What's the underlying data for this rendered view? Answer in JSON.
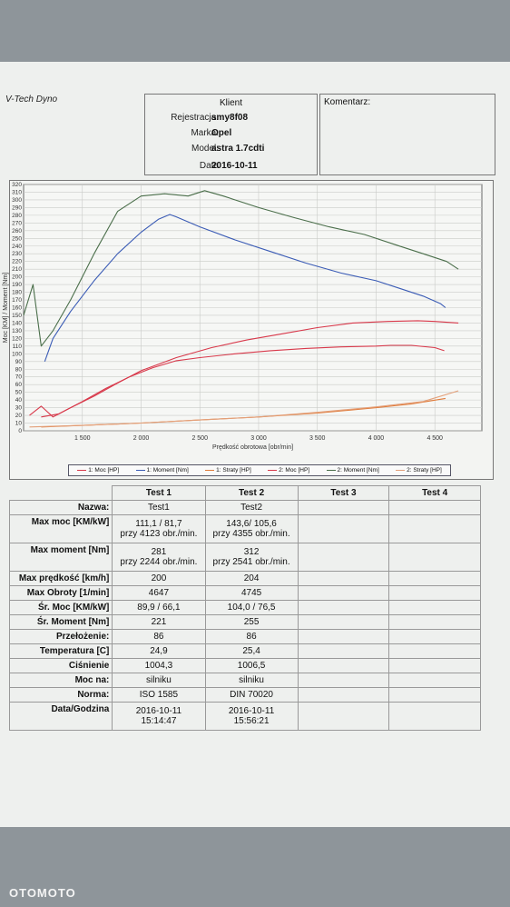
{
  "header": {
    "brand": "V-Tech Dyno",
    "client_title": "Klient",
    "fields": [
      {
        "label": "Rejestracja:",
        "value": "smy8f08"
      },
      {
        "label": "Marka:",
        "value": "Opel"
      },
      {
        "label": "Model:",
        "value": "astra 1.7cdti"
      },
      {
        "label": "Data",
        "value": "2016-10-11"
      }
    ],
    "comment_label": "Komentarz:"
  },
  "chart_data": {
    "type": "line",
    "title": "",
    "xlabel": "Prędkość obrotowa [obr/min]",
    "ylabel": "Moc [KM] / Moment [Nm]",
    "xlim": [
      1000,
      4900
    ],
    "ylim": [
      0,
      320
    ],
    "x_ticks": [
      1500,
      2000,
      2500,
      3000,
      3500,
      4000,
      4500
    ],
    "x_tick_labels": [
      "1 500",
      "2 000",
      "2 500",
      "3 000",
      "3 500",
      "4 000",
      "4 500"
    ],
    "y_ticks": [
      0,
      10,
      20,
      30,
      40,
      50,
      60,
      70,
      80,
      90,
      100,
      110,
      120,
      130,
      140,
      150,
      160,
      170,
      180,
      190,
      200,
      210,
      220,
      230,
      240,
      250,
      260,
      270,
      280,
      290,
      300,
      310,
      320
    ],
    "grid": true,
    "legend_position": "bottom",
    "series": [
      {
        "name": "1: Moc [HP]",
        "color": "#d8384a",
        "x": [
          1150,
          1300,
          1500,
          1700,
          1900,
          2100,
          2300,
          2500,
          2800,
          3100,
          3400,
          3700,
          4000,
          4123,
          4300,
          4500,
          4580
        ],
        "y": [
          18,
          22,
          38,
          55,
          70,
          82,
          91,
          95,
          100,
          104,
          107,
          109,
          110,
          111,
          111,
          108,
          104
        ]
      },
      {
        "name": "1: Moment [Nm]",
        "color": "#3a5bb5",
        "x": [
          1180,
          1250,
          1400,
          1600,
          1800,
          2000,
          2150,
          2244,
          2300,
          2500,
          2800,
          3100,
          3400,
          3700,
          4000,
          4200,
          4400,
          4550,
          4590
        ],
        "y": [
          90,
          120,
          155,
          195,
          230,
          258,
          275,
          281,
          278,
          265,
          248,
          233,
          218,
          205,
          195,
          185,
          175,
          165,
          160
        ]
      },
      {
        "name": "1: Straty [HP]",
        "color": "#e07b3a",
        "x": [
          1150,
          1500,
          2000,
          2500,
          3000,
          3500,
          4000,
          4300,
          4590
        ],
        "y": [
          5,
          7,
          10,
          14,
          18,
          23,
          30,
          35,
          42
        ]
      },
      {
        "name": "2: Moc [HP]",
        "color": "#d8384a",
        "x": [
          1050,
          1150,
          1250,
          1400,
          1600,
          1800,
          2000,
          2300,
          2600,
          2900,
          3200,
          3500,
          3800,
          4100,
          4355,
          4500,
          4700
        ],
        "y": [
          20,
          32,
          18,
          30,
          45,
          62,
          78,
          95,
          108,
          118,
          126,
          134,
          140,
          142,
          143,
          142,
          140
        ]
      },
      {
        "name": "2: Moment [Nm]",
        "color": "#4a6e4a",
        "x": [
          1000,
          1080,
          1150,
          1250,
          1400,
          1600,
          1800,
          2000,
          2200,
          2400,
          2541,
          2700,
          3000,
          3300,
          3600,
          3900,
          4200,
          4400,
          4600,
          4700
        ],
        "y": [
          150,
          190,
          110,
          130,
          170,
          230,
          285,
          305,
          308,
          305,
          312,
          305,
          290,
          277,
          265,
          255,
          240,
          230,
          220,
          210
        ]
      },
      {
        "name": "2: Straty [HP]",
        "color": "#e3a07a",
        "x": [
          1050,
          1500,
          2000,
          2500,
          3000,
          3500,
          4000,
          4400,
          4700
        ],
        "y": [
          5,
          7,
          10,
          14,
          18,
          24,
          31,
          38,
          52
        ]
      }
    ]
  },
  "legend_items": [
    {
      "label": "1: Moc [HP]",
      "color": "#d8384a"
    },
    {
      "label": "1: Moment [Nm]",
      "color": "#3a5bb5"
    },
    {
      "label": "1: Straty [HP]",
      "color": "#e07b3a"
    },
    {
      "label": "2: Moc [HP]",
      "color": "#d8384a"
    },
    {
      "label": "2: Moment [Nm]",
      "color": "#4a6e4a"
    },
    {
      "label": "2: Straty [HP]",
      "color": "#e3a07a"
    }
  ],
  "results": {
    "columns": [
      "Test 1",
      "Test 2",
      "Test 3",
      "Test 4"
    ],
    "rows": [
      {
        "label": "Nazwa:",
        "t1": "Test1",
        "t2": "Test2"
      },
      {
        "label": "Max moc [KM/kW]",
        "t1": "111,1 / 81,7",
        "t1b": "przy 4123 obr./min.",
        "t2": "143,6/ 105,6",
        "t2b": "przy 4355 obr./min."
      },
      {
        "label": "Max moment [Nm]",
        "t1": "281",
        "t1b": "przy 2244 obr./min.",
        "t2": "312",
        "t2b": "przy 2541 obr./min."
      },
      {
        "label": "Max prędkość [km/h]",
        "t1": "200",
        "t2": "204"
      },
      {
        "label": "Max Obroty [1/min]",
        "t1": "4647",
        "t2": "4745"
      },
      {
        "label": "Śr. Moc [KM/kW]",
        "t1": "89,9 / 66,1",
        "t2": "104,0 / 76,5"
      },
      {
        "label": "Śr. Moment [Nm]",
        "t1": "221",
        "t2": "255"
      },
      {
        "label": "Przełożenie:",
        "t1": "86",
        "t2": "86"
      },
      {
        "label": "Temperatura [C]",
        "t1": "24,9",
        "t2": "25,4"
      },
      {
        "label": "Ciśnienie",
        "t1": "1004,3",
        "t2": "1006,5"
      },
      {
        "label": "Moc na:",
        "t1": "silniku",
        "t2": "silniku"
      },
      {
        "label": "Norma:",
        "t1": "ISO 1585",
        "t2": "DIN 70020"
      },
      {
        "label": "Data/Godzina",
        "t1": "2016-10-11",
        "t1b": "15:14:47",
        "t2": "2016-10-11",
        "t2b": "15:56:21"
      }
    ]
  },
  "watermark": "OTOMOTO"
}
